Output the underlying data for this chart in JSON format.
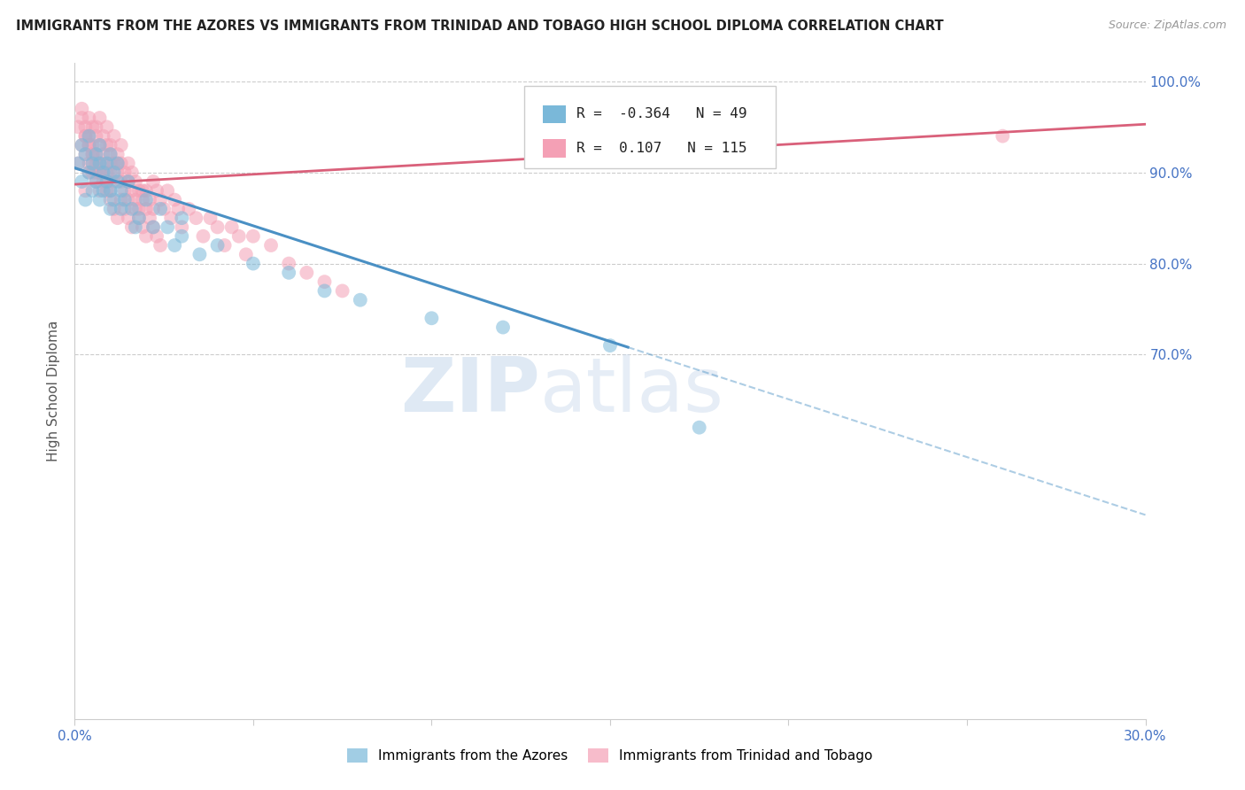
{
  "title": "IMMIGRANTS FROM THE AZORES VS IMMIGRANTS FROM TRINIDAD AND TOBAGO HIGH SCHOOL DIPLOMA CORRELATION CHART",
  "source": "Source: ZipAtlas.com",
  "ylabel": "High School Diploma",
  "azores_R": -0.364,
  "azores_N": 49,
  "tt_R": 0.107,
  "tt_N": 115,
  "x_min": 0.0,
  "x_max": 0.3,
  "y_min": 0.3,
  "y_max": 1.02,
  "blue_color": "#7ab8d9",
  "pink_color": "#f4a0b5",
  "blue_line_color": "#4a90c4",
  "pink_line_color": "#d9607a",
  "watermark_color": "#d0e4f5",
  "background": "#ffffff",
  "grid_color": "#cccccc",
  "tick_color": "#4472C4",
  "azores_x": [
    0.001,
    0.002,
    0.002,
    0.003,
    0.003,
    0.004,
    0.004,
    0.005,
    0.005,
    0.006,
    0.006,
    0.007,
    0.007,
    0.007,
    0.008,
    0.008,
    0.009,
    0.009,
    0.01,
    0.01,
    0.01,
    0.011,
    0.011,
    0.012,
    0.012,
    0.013,
    0.013,
    0.014,
    0.015,
    0.016,
    0.017,
    0.018,
    0.02,
    0.022,
    0.024,
    0.026,
    0.028,
    0.03,
    0.035,
    0.04,
    0.05,
    0.06,
    0.07,
    0.08,
    0.1,
    0.12,
    0.15,
    0.03,
    0.175
  ],
  "azores_y": [
    0.91,
    0.93,
    0.89,
    0.92,
    0.87,
    0.9,
    0.94,
    0.91,
    0.88,
    0.92,
    0.89,
    0.91,
    0.87,
    0.93,
    0.9,
    0.88,
    0.91,
    0.89,
    0.92,
    0.88,
    0.86,
    0.9,
    0.87,
    0.89,
    0.91,
    0.88,
    0.86,
    0.87,
    0.89,
    0.86,
    0.84,
    0.85,
    0.87,
    0.84,
    0.86,
    0.84,
    0.82,
    0.83,
    0.81,
    0.82,
    0.8,
    0.79,
    0.77,
    0.76,
    0.74,
    0.73,
    0.71,
    0.85,
    0.62
  ],
  "tt_x": [
    0.001,
    0.001,
    0.002,
    0.002,
    0.002,
    0.003,
    0.003,
    0.003,
    0.004,
    0.004,
    0.004,
    0.004,
    0.005,
    0.005,
    0.005,
    0.005,
    0.006,
    0.006,
    0.006,
    0.006,
    0.007,
    0.007,
    0.007,
    0.007,
    0.008,
    0.008,
    0.008,
    0.009,
    0.009,
    0.009,
    0.01,
    0.01,
    0.01,
    0.01,
    0.011,
    0.011,
    0.011,
    0.012,
    0.012,
    0.012,
    0.013,
    0.013,
    0.013,
    0.014,
    0.014,
    0.015,
    0.015,
    0.015,
    0.016,
    0.016,
    0.017,
    0.017,
    0.018,
    0.018,
    0.019,
    0.019,
    0.02,
    0.02,
    0.021,
    0.022,
    0.022,
    0.023,
    0.024,
    0.025,
    0.026,
    0.027,
    0.028,
    0.029,
    0.03,
    0.032,
    0.034,
    0.036,
    0.038,
    0.04,
    0.042,
    0.044,
    0.046,
    0.048,
    0.05,
    0.055,
    0.06,
    0.065,
    0.07,
    0.075,
    0.003,
    0.004,
    0.005,
    0.006,
    0.007,
    0.008,
    0.009,
    0.01,
    0.003,
    0.004,
    0.005,
    0.006,
    0.007,
    0.008,
    0.009,
    0.01,
    0.011,
    0.012,
    0.013,
    0.014,
    0.015,
    0.016,
    0.017,
    0.018,
    0.019,
    0.02,
    0.021,
    0.022,
    0.023,
    0.024,
    0.26
  ],
  "tt_y": [
    0.91,
    0.95,
    0.93,
    0.96,
    0.97,
    0.94,
    0.92,
    0.95,
    0.93,
    0.9,
    0.96,
    0.94,
    0.92,
    0.95,
    0.91,
    0.93,
    0.9,
    0.94,
    0.92,
    0.95,
    0.91,
    0.93,
    0.96,
    0.9,
    0.92,
    0.94,
    0.91,
    0.93,
    0.9,
    0.95,
    0.91,
    0.93,
    0.9,
    0.92,
    0.94,
    0.91,
    0.89,
    0.92,
    0.9,
    0.91,
    0.89,
    0.91,
    0.93,
    0.9,
    0.88,
    0.91,
    0.89,
    0.87,
    0.9,
    0.88,
    0.87,
    0.89,
    0.88,
    0.86,
    0.88,
    0.87,
    0.86,
    0.88,
    0.87,
    0.89,
    0.86,
    0.88,
    0.87,
    0.86,
    0.88,
    0.85,
    0.87,
    0.86,
    0.84,
    0.86,
    0.85,
    0.83,
    0.85,
    0.84,
    0.82,
    0.84,
    0.83,
    0.81,
    0.83,
    0.82,
    0.8,
    0.79,
    0.78,
    0.77,
    0.88,
    0.91,
    0.9,
    0.89,
    0.88,
    0.9,
    0.89,
    0.88,
    0.94,
    0.93,
    0.92,
    0.91,
    0.9,
    0.89,
    0.88,
    0.87,
    0.86,
    0.85,
    0.87,
    0.86,
    0.85,
    0.84,
    0.86,
    0.85,
    0.84,
    0.83,
    0.85,
    0.84,
    0.83,
    0.82,
    0.94
  ]
}
